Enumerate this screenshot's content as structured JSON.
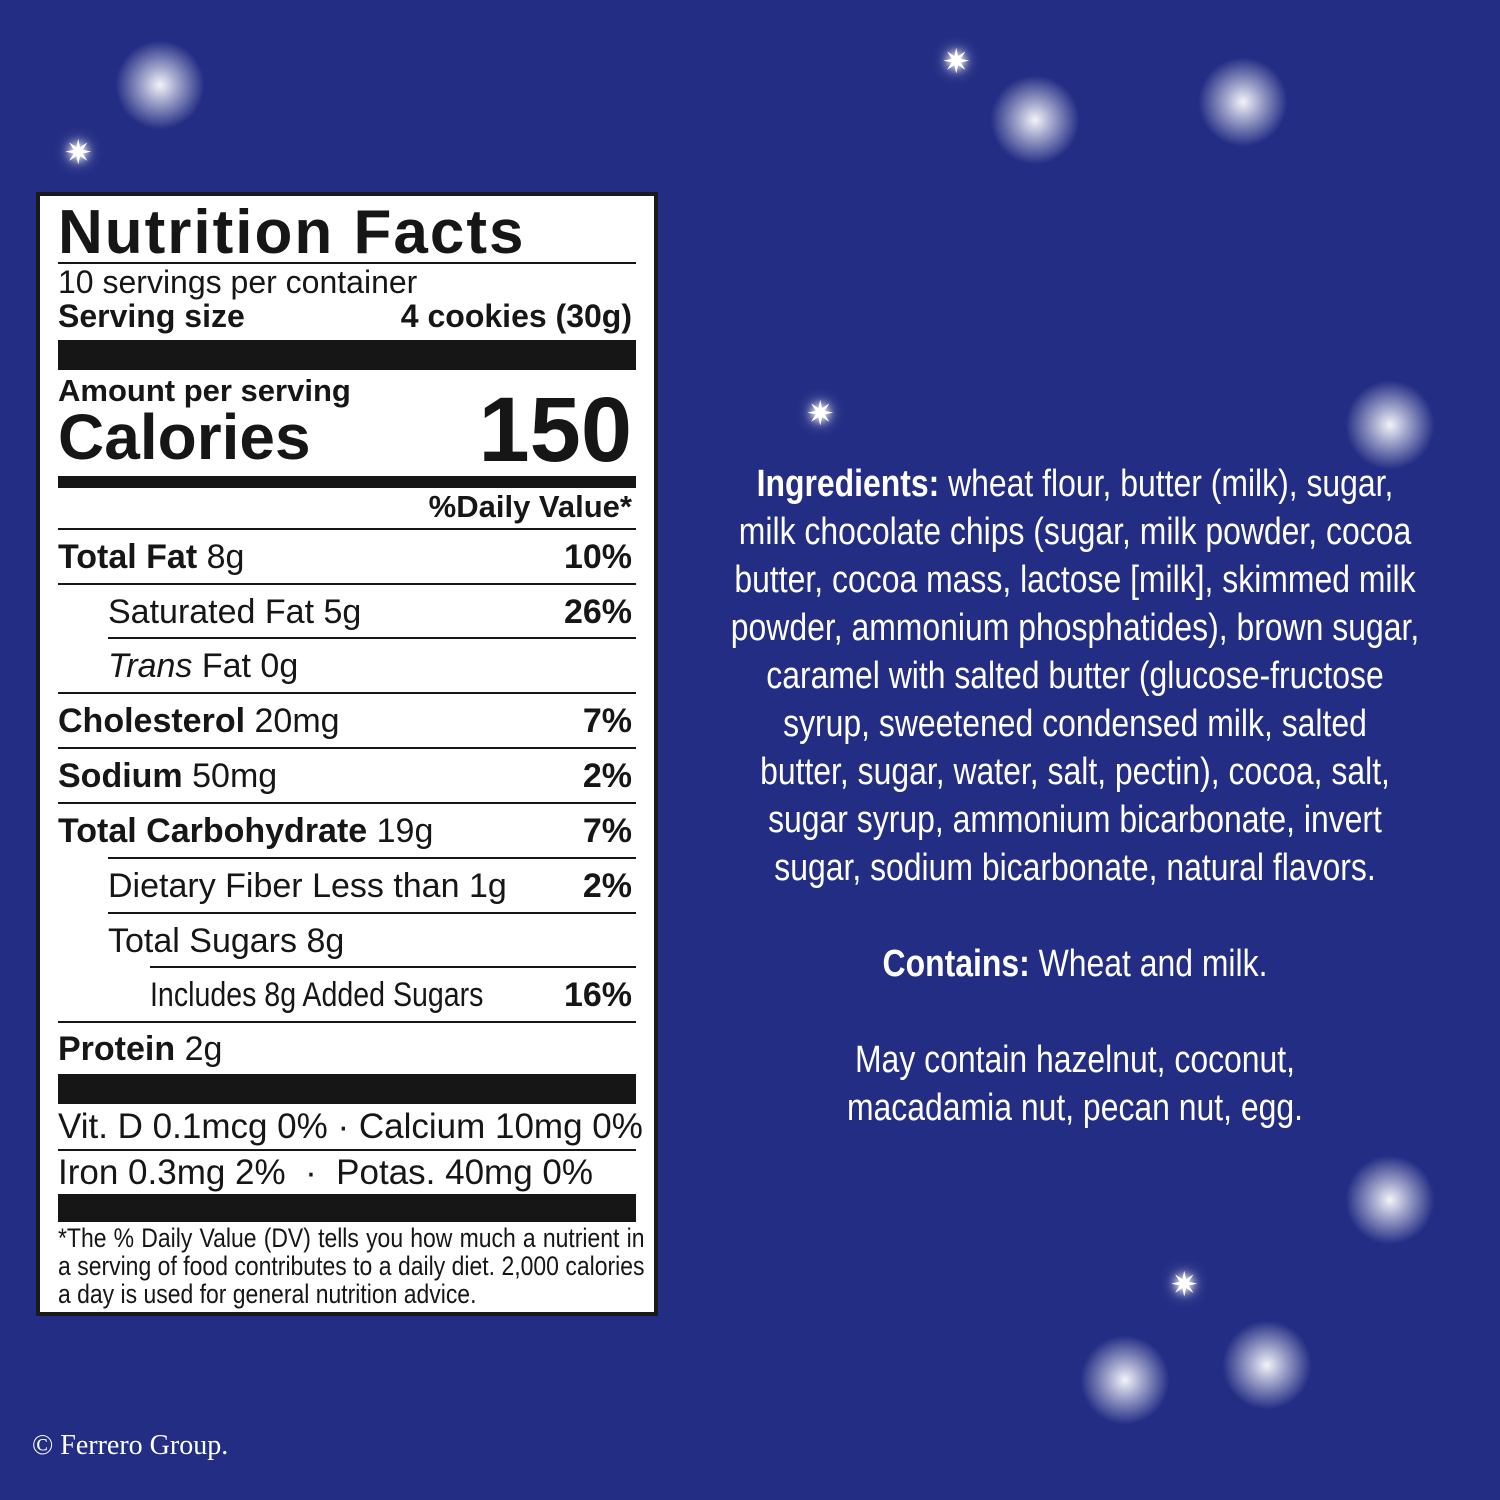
{
  "label": {
    "title": "Nutrition Facts",
    "servings": "10 servings per container",
    "serving_size_label": "Serving size",
    "serving_size_value": "4 cookies (30g)",
    "amount_per_serving": "Amount per serving",
    "calories_label": "Calories",
    "calories_value": "150",
    "daily_value_header": "%Daily Value*",
    "rows": [
      {
        "name": "Total Fat",
        "amount": "8g",
        "dv": "10%"
      },
      {
        "name": "Saturated Fat",
        "amount": "5g",
        "dv": "26%"
      },
      {
        "name": "Trans",
        "amount": "Fat 0g",
        "dv": ""
      },
      {
        "name": "Cholesterol",
        "amount": "20mg",
        "dv": "7%"
      },
      {
        "name": "Sodium",
        "amount": "50mg",
        "dv": "2%"
      },
      {
        "name": "Total Carbohydrate",
        "amount": "19g",
        "dv": "7%"
      },
      {
        "name": "Dietary Fiber",
        "amount": "Less than 1g",
        "dv": "2%"
      },
      {
        "name": "Total Sugars",
        "amount": "8g",
        "dv": ""
      },
      {
        "name": "Includes 8g Added Sugars",
        "amount": "",
        "dv": "16%"
      },
      {
        "name": "Protein",
        "amount": "2g",
        "dv": ""
      }
    ],
    "vitamins_line1": "Vit. D 0.1mcg 0% · Calcium 10mg 0%",
    "vitamins_line2": "Iron 0.3mg 2%  ·  Potas. 40mg 0%",
    "footnote": "*The % Daily Value (DV) tells you how much a nutrient in a serving of food contributes to a daily diet. 2,000 calories a day is used for general nutrition advice."
  },
  "ingredients": {
    "label": "Ingredients:",
    "lines": [
      " wheat flour, butter (milk), sugar,",
      "milk chocolate chips (sugar, milk powder, cocoa",
      "butter, cocoa mass, lactose [milk], skimmed milk",
      "powder, ammonium phosphatides), brown sugar,",
      "caramel with salted butter (glucose-fructose",
      "syrup, sweetened condensed milk, salted",
      "butter, sugar, water, salt, pectin), cocoa, salt,",
      "sugar syrup, ammonium bicarbonate, invert",
      "sugar, sodium bicarbonate, natural flavors."
    ],
    "contains_label": "Contains:",
    "contains_text": " Wheat and milk.",
    "may_contain_lines": [
      "May contain hazelnut, coconut,",
      "macadamia nut, pecan nut, egg."
    ]
  },
  "copyright": "© Ferrero Group.",
  "colors": {
    "background": "#232d84",
    "label": "#ffffff",
    "text": "#161616"
  }
}
